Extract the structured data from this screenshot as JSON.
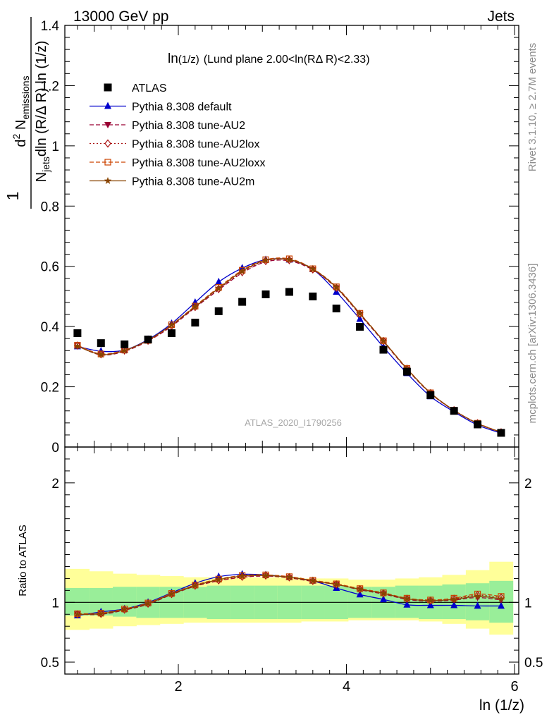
{
  "header": {
    "left": "13000 GeV pp",
    "right": "Jets"
  },
  "side_text": {
    "rivet": "Rivet 3.1.10, ≥ 2.7M events",
    "mcplots": "mcplots.cern.ch [arXiv:1306.3436]"
  },
  "watermark": "ATLAS_2020_I1790256",
  "main_title": {
    "lead": "ln",
    "sub": "(1/z)",
    "rest": "(Lund plane 2.00<ln(RΔ R)<2.33)"
  },
  "ylabel_main": {
    "numerator_lead": "d",
    "numerator_sup": "2",
    "numerator_rest": " N",
    "numerator_sub": "emissions",
    "denominator_lead": "N",
    "denominator_sub": "jets",
    "denominator_rest": "dln (R/Δ R) ln (1/z)",
    "one": "1"
  },
  "ylabel_ratio": "Ratio to ATLAS",
  "xlabel": "ln (1/z)",
  "colors": {
    "atlas": "#000000",
    "default": "#0000cc",
    "au2": "#990033",
    "au2lox": "#aa1111",
    "au2loxx": "#cc4400",
    "au2m": "#884400",
    "band_inner": "#99ee99",
    "band_outer": "#ffff99"
  },
  "chart_data": {
    "type": "line",
    "xlim": [
      0.65,
      6.05
    ],
    "ylim_main": [
      0,
      1.4
    ],
    "ylim_ratio": [
      0.4,
      2.3
    ],
    "x_ticks": [
      "2",
      "4",
      "6"
    ],
    "y_ticks_main": [
      "0",
      "0.2",
      "0.4",
      "0.6",
      "0.8",
      "1",
      "1.2",
      "1.4"
    ],
    "y_ticks_ratio": [
      "0.5",
      "1",
      "2"
    ],
    "legend_position": "top-left",
    "x": [
      0.8,
      1.08,
      1.36,
      1.64,
      1.92,
      2.2,
      2.48,
      2.76,
      3.04,
      3.32,
      3.6,
      3.88,
      4.16,
      4.44,
      4.72,
      5.0,
      5.28,
      5.56,
      5.84
    ],
    "bin_edges": [
      0.65,
      0.94,
      1.22,
      1.5,
      1.78,
      2.06,
      2.34,
      2.62,
      2.9,
      3.18,
      3.46,
      3.74,
      4.02,
      4.3,
      4.58,
      4.86,
      5.14,
      5.42,
      5.7,
      5.98
    ],
    "ratio_band_inner": [
      [
        0.89,
        1.12
      ],
      [
        0.89,
        1.12
      ],
      [
        0.88,
        1.13
      ],
      [
        0.87,
        1.13
      ],
      [
        0.87,
        1.13
      ],
      [
        0.87,
        1.13
      ],
      [
        0.86,
        1.14
      ],
      [
        0.86,
        1.14
      ],
      [
        0.86,
        1.14
      ],
      [
        0.86,
        1.14
      ],
      [
        0.86,
        1.14
      ],
      [
        0.86,
        1.14
      ],
      [
        0.87,
        1.13
      ],
      [
        0.87,
        1.13
      ],
      [
        0.87,
        1.14
      ],
      [
        0.86,
        1.14
      ],
      [
        0.86,
        1.15
      ],
      [
        0.85,
        1.16
      ],
      [
        0.83,
        1.18
      ]
    ],
    "ratio_band_outer": [
      [
        0.77,
        1.28
      ],
      [
        0.78,
        1.26
      ],
      [
        0.8,
        1.24
      ],
      [
        0.81,
        1.23
      ],
      [
        0.82,
        1.22
      ],
      [
        0.83,
        1.21
      ],
      [
        0.83,
        1.21
      ],
      [
        0.83,
        1.21
      ],
      [
        0.83,
        1.21
      ],
      [
        0.83,
        1.21
      ],
      [
        0.84,
        1.2
      ],
      [
        0.84,
        1.2
      ],
      [
        0.85,
        1.19
      ],
      [
        0.85,
        1.19
      ],
      [
        0.85,
        1.2
      ],
      [
        0.84,
        1.21
      ],
      [
        0.82,
        1.23
      ],
      [
        0.78,
        1.27
      ],
      [
        0.73,
        1.34
      ]
    ],
    "series": [
      {
        "name": "ATLAS",
        "style": "data",
        "color": "#000000",
        "values": [
          0.378,
          0.345,
          0.341,
          0.357,
          0.378,
          0.413,
          0.451,
          0.482,
          0.507,
          0.515,
          0.5,
          0.46,
          0.399,
          0.323,
          0.25,
          0.172,
          0.12,
          0.075,
          0.047
        ],
        "ratio": [
          1.0,
          1.0,
          1.0,
          1.0,
          1.0,
          1.0,
          1.0,
          1.0,
          1.0,
          1.0,
          1.0,
          1.0,
          1.0,
          1.0,
          1.0,
          1.0,
          1.0,
          1.0,
          1.0
        ]
      },
      {
        "name": "Pythia 8.308 default",
        "style": "solid",
        "marker": "triangle-up",
        "color": "#0000cc",
        "values": [
          0.334,
          0.318,
          0.322,
          0.357,
          0.41,
          0.48,
          0.548,
          0.594,
          0.622,
          0.622,
          0.59,
          0.515,
          0.425,
          0.332,
          0.245,
          0.168,
          0.117,
          0.073,
          0.046
        ],
        "ratio": [
          0.89,
          0.92,
          0.945,
          1.0,
          1.08,
          1.16,
          1.215,
          1.235,
          1.23,
          1.21,
          1.18,
          1.12,
          1.065,
          1.025,
          0.98,
          0.975,
          0.975,
          0.97,
          0.97
        ]
      },
      {
        "name": "Pythia 8.308 tune-AU2",
        "style": "dashed",
        "marker": "triangle-down",
        "color": "#990033",
        "values": [
          0.336,
          0.306,
          0.318,
          0.352,
          0.401,
          0.463,
          0.522,
          0.578,
          0.615,
          0.618,
          0.588,
          0.528,
          0.44,
          0.35,
          0.258,
          0.178,
          0.121,
          0.078,
          0.048
        ],
        "ratio": [
          0.9,
          0.9,
          0.935,
          0.985,
          1.065,
          1.135,
          1.18,
          1.21,
          1.22,
          1.205,
          1.175,
          1.15,
          1.105,
          1.07,
          1.025,
          1.01,
          1.02,
          1.04,
          1.02
        ]
      },
      {
        "name": "Pythia 8.308 tune-AU2lox",
        "style": "dotted",
        "marker": "diamond-open",
        "color": "#aa1111",
        "values": [
          0.337,
          0.308,
          0.321,
          0.353,
          0.403,
          0.465,
          0.525,
          0.581,
          0.618,
          0.621,
          0.59,
          0.529,
          0.442,
          0.352,
          0.26,
          0.179,
          0.122,
          0.079,
          0.049
        ],
        "ratio": [
          0.9,
          0.905,
          0.94,
          0.99,
          1.07,
          1.14,
          1.185,
          1.215,
          1.225,
          1.21,
          1.18,
          1.15,
          1.11,
          1.075,
          1.03,
          1.015,
          1.03,
          1.06,
          1.04
        ]
      },
      {
        "name": "Pythia 8.308 tune-AU2loxx",
        "style": "dashed",
        "marker": "square-open",
        "color": "#cc4400",
        "values": [
          0.338,
          0.309,
          0.322,
          0.354,
          0.406,
          0.468,
          0.53,
          0.587,
          0.622,
          0.625,
          0.592,
          0.532,
          0.444,
          0.353,
          0.261,
          0.18,
          0.122,
          0.079,
          0.049
        ],
        "ratio": [
          0.905,
          0.91,
          0.945,
          0.995,
          1.075,
          1.145,
          1.195,
          1.225,
          1.23,
          1.215,
          1.185,
          1.155,
          1.115,
          1.08,
          1.035,
          1.02,
          1.035,
          1.07,
          1.05
        ]
      },
      {
        "name": "Pythia 8.308 tune-AU2m",
        "style": "solid",
        "marker": "star",
        "color": "#884400",
        "values": [
          0.335,
          0.307,
          0.32,
          0.355,
          0.405,
          0.466,
          0.527,
          0.584,
          0.62,
          0.622,
          0.591,
          0.53,
          0.443,
          0.352,
          0.26,
          0.179,
          0.122,
          0.078,
          0.049
        ],
        "ratio": [
          0.9,
          0.905,
          0.94,
          0.99,
          1.07,
          1.14,
          1.19,
          1.22,
          1.225,
          1.21,
          1.18,
          1.15,
          1.11,
          1.075,
          1.03,
          1.015,
          1.025,
          1.05,
          1.03
        ]
      }
    ]
  }
}
